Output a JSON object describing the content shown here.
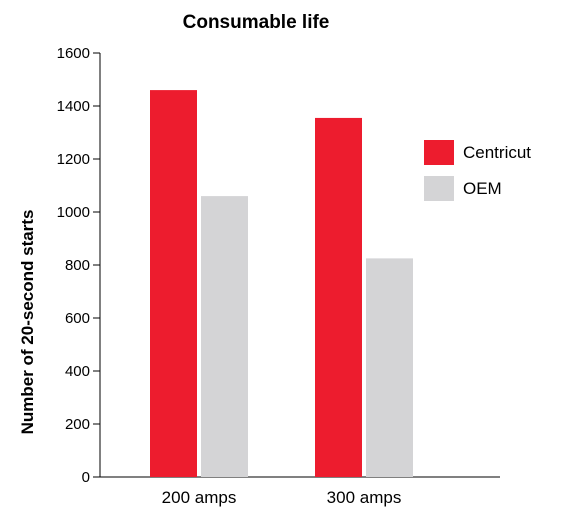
{
  "chart_data": {
    "type": "bar",
    "title": "Consumable life",
    "ylabel": "Number of 20-second starts",
    "xlabel": "",
    "categories": [
      "200 amps",
      "300 amps"
    ],
    "series": [
      {
        "name": "Centricut",
        "values": [
          1460,
          1355
        ],
        "color": "#ed1c2e"
      },
      {
        "name": "OEM",
        "values": [
          1060,
          825
        ],
        "color": "#d4d4d6"
      }
    ],
    "ylim": [
      0,
      1600
    ],
    "yticks": [
      "0",
      "200",
      "400",
      "600",
      "800",
      "1000",
      "1200",
      "1400",
      "1600"
    ],
    "legend_position": "right",
    "grid": false
  }
}
